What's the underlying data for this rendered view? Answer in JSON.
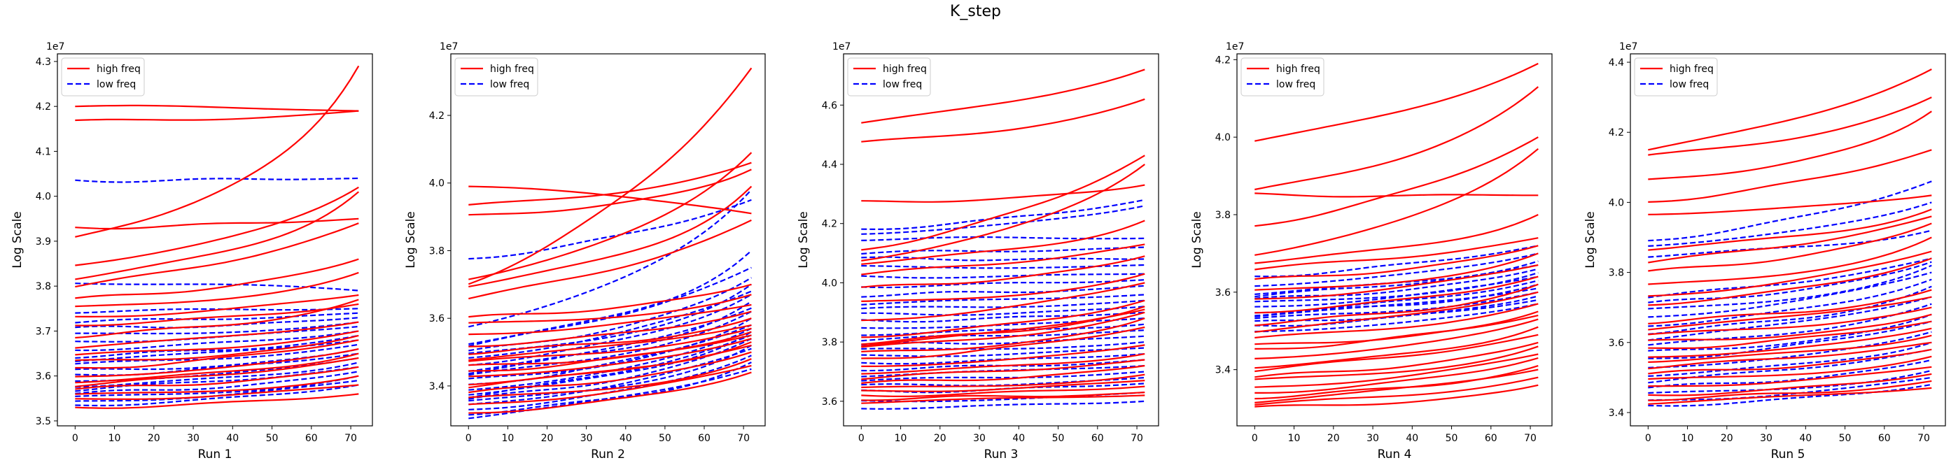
{
  "figure": {
    "title": "K_step"
  },
  "legend": {
    "high": "high freq",
    "low": "low freq"
  },
  "colors": {
    "high": "#ff0000",
    "low": "#0000ff"
  },
  "chart_data": [
    {
      "type": "line",
      "xlabel": "Run 1",
      "ylabel": "Log Scale",
      "offset_text": "1e7",
      "xticks": [
        0,
        10,
        20,
        30,
        40,
        50,
        60,
        70
      ],
      "xlim": [
        -4.5,
        75.5
      ],
      "yticks": [
        3.5,
        3.6,
        3.7,
        3.8,
        3.9,
        4.0,
        4.1,
        4.2,
        4.3
      ],
      "yticklabels": [
        "3.5",
        "3.6",
        "3.7",
        "3.8",
        "3.9",
        "4.0",
        "4.1",
        "4.2",
        "4.3"
      ],
      "ylim": [
        3.489,
        4.317
      ],
      "grid": false,
      "legend_loc": "upper left",
      "series_high": [
        {
          "s": 4.2,
          "e": 4.19
        },
        {
          "s": 4.165,
          "e": 4.19
        },
        {
          "s": 3.905,
          "e": 4.29
        },
        {
          "s": 3.93,
          "e": 3.95
        },
        {
          "s": 3.85,
          "e": 4.02
        },
        {
          "s": 3.82,
          "e": 4.01
        },
        {
          "s": 3.8,
          "e": 3.94
        },
        {
          "s": 3.77,
          "e": 3.86
        },
        {
          "s": 3.75,
          "e": 3.83
        },
        {
          "s": 3.73,
          "e": 3.78
        },
        {
          "s": 3.715,
          "e": 3.76
        },
        {
          "s": 3.69,
          "e": 3.77
        },
        {
          "s": 3.665,
          "e": 3.72
        },
        {
          "s": 3.645,
          "e": 3.7
        },
        {
          "s": 3.63,
          "e": 3.69
        },
        {
          "s": 3.615,
          "e": 3.68
        },
        {
          "s": 3.6,
          "e": 3.66
        },
        {
          "s": 3.59,
          "e": 3.65
        },
        {
          "s": 3.58,
          "e": 3.64
        },
        {
          "s": 3.57,
          "e": 3.62
        },
        {
          "s": 3.555,
          "e": 3.6
        },
        {
          "s": 3.545,
          "e": 3.58
        },
        {
          "s": 3.53,
          "e": 3.56
        }
      ],
      "series_low": [
        {
          "s": 4.035,
          "e": 4.04
        },
        {
          "s": 3.81,
          "e": 3.79
        },
        {
          "s": 3.745,
          "e": 3.75
        },
        {
          "s": 3.72,
          "e": 3.74
        },
        {
          "s": 3.705,
          "e": 3.73
        },
        {
          "s": 3.69,
          "e": 3.72
        },
        {
          "s": 3.675,
          "e": 3.71
        },
        {
          "s": 3.66,
          "e": 3.7
        },
        {
          "s": 3.645,
          "e": 3.69
        },
        {
          "s": 3.635,
          "e": 3.68
        },
        {
          "s": 3.625,
          "e": 3.67
        },
        {
          "s": 3.61,
          "e": 3.66
        },
        {
          "s": 3.6,
          "e": 3.65
        },
        {
          "s": 3.59,
          "e": 3.64
        },
        {
          "s": 3.58,
          "e": 3.63
        },
        {
          "s": 3.57,
          "e": 3.62
        },
        {
          "s": 3.56,
          "e": 3.61
        },
        {
          "s": 3.55,
          "e": 3.6
        },
        {
          "s": 3.54,
          "e": 3.59
        },
        {
          "s": 3.535,
          "e": 3.58
        }
      ]
    },
    {
      "type": "line",
      "xlabel": "Run 2",
      "ylabel": "Log Scale",
      "offset_text": "1e7",
      "xticks": [
        0,
        10,
        20,
        30,
        40,
        50,
        60,
        70
      ],
      "xlim": [
        -4.5,
        75.5
      ],
      "yticks": [
        3.4,
        3.6,
        3.8,
        4.0,
        4.2
      ],
      "yticklabels": [
        "3.4",
        "3.6",
        "3.8",
        "4.0",
        "4.2"
      ],
      "ylim": [
        3.282,
        4.382
      ],
      "grid": false,
      "legend_loc": "upper left",
      "series_high": [
        {
          "s": 3.99,
          "e": 3.91
        },
        {
          "s": 3.93,
          "e": 4.06
        },
        {
          "s": 3.9,
          "e": 4.04
        },
        {
          "s": 3.7,
          "e": 4.34
        },
        {
          "s": 3.72,
          "e": 4.09
        },
        {
          "s": 3.7,
          "e": 3.99
        },
        {
          "s": 3.66,
          "e": 3.89
        },
        {
          "s": 3.6,
          "e": 3.7
        },
        {
          "s": 3.58,
          "e": 3.67
        },
        {
          "s": 3.55,
          "e": 3.64
        },
        {
          "s": 3.52,
          "e": 3.62
        },
        {
          "s": 3.5,
          "e": 3.6
        },
        {
          "s": 3.48,
          "e": 3.58
        },
        {
          "s": 3.47,
          "e": 3.57
        },
        {
          "s": 3.455,
          "e": 3.56
        },
        {
          "s": 3.44,
          "e": 3.55
        },
        {
          "s": 3.43,
          "e": 3.54
        },
        {
          "s": 3.41,
          "e": 3.53
        },
        {
          "s": 3.4,
          "e": 3.52
        },
        {
          "s": 3.38,
          "e": 3.5
        },
        {
          "s": 3.36,
          "e": 3.48
        },
        {
          "s": 3.34,
          "e": 3.46
        },
        {
          "s": 3.32,
          "e": 3.44
        }
      ],
      "series_low": [
        {
          "s": 3.775,
          "e": 3.95
        },
        {
          "s": 3.58,
          "e": 3.98
        },
        {
          "s": 3.53,
          "e": 3.8
        },
        {
          "s": 3.52,
          "e": 3.75
        },
        {
          "s": 3.5,
          "e": 3.72
        },
        {
          "s": 3.49,
          "e": 3.7
        },
        {
          "s": 3.48,
          "e": 3.68
        },
        {
          "s": 3.465,
          "e": 3.67
        },
        {
          "s": 3.45,
          "e": 3.65
        },
        {
          "s": 3.44,
          "e": 3.63
        },
        {
          "s": 3.43,
          "e": 3.62
        },
        {
          "s": 3.415,
          "e": 3.6
        },
        {
          "s": 3.4,
          "e": 3.58
        },
        {
          "s": 3.39,
          "e": 3.57
        },
        {
          "s": 3.38,
          "e": 3.56
        },
        {
          "s": 3.37,
          "e": 3.55
        },
        {
          "s": 3.36,
          "e": 3.54
        },
        {
          "s": 3.35,
          "e": 3.52
        },
        {
          "s": 3.34,
          "e": 3.51
        },
        {
          "s": 3.33,
          "e": 3.49
        },
        {
          "s": 3.32,
          "e": 3.47
        },
        {
          "s": 3.31,
          "e": 3.45
        }
      ]
    },
    {
      "type": "line",
      "xlabel": "Run 3",
      "ylabel": "Log Scale",
      "offset_text": "1e7",
      "xticks": [
        0,
        10,
        20,
        30,
        40,
        50,
        60,
        70
      ],
      "xlim": [
        -4.5,
        75.5
      ],
      "yticks": [
        3.6,
        3.8,
        4.0,
        4.2,
        4.4,
        4.6
      ],
      "yticklabels": [
        "3.6",
        "3.8",
        "4.0",
        "4.2",
        "4.4",
        "4.6"
      ],
      "ylim": [
        3.517,
        4.773
      ],
      "grid": false,
      "legend_loc": "upper left",
      "series_high": [
        {
          "s": 4.54,
          "e": 4.72
        },
        {
          "s": 4.47,
          "e": 4.62
        },
        {
          "s": 4.27,
          "e": 4.33
        },
        {
          "s": 4.11,
          "e": 4.43
        },
        {
          "s": 4.08,
          "e": 4.4
        },
        {
          "s": 4.07,
          "e": 4.21
        },
        {
          "s": 4.03,
          "e": 4.13
        },
        {
          "s": 3.98,
          "e": 4.09
        },
        {
          "s": 3.93,
          "e": 4.03
        },
        {
          "s": 3.87,
          "e": 4.0
        },
        {
          "s": 3.82,
          "e": 3.94
        },
        {
          "s": 3.8,
          "e": 3.92
        },
        {
          "s": 3.79,
          "e": 3.91
        },
        {
          "s": 3.78,
          "e": 3.9
        },
        {
          "s": 3.76,
          "e": 3.88
        },
        {
          "s": 3.74,
          "e": 3.85
        },
        {
          "s": 3.72,
          "e": 3.79
        },
        {
          "s": 3.7,
          "e": 3.76
        },
        {
          "s": 3.68,
          "e": 3.74
        },
        {
          "s": 3.66,
          "e": 3.72
        },
        {
          "s": 3.64,
          "e": 3.69
        },
        {
          "s": 3.63,
          "e": 3.67
        },
        {
          "s": 3.62,
          "e": 3.65
        },
        {
          "s": 3.61,
          "e": 3.63
        },
        {
          "s": 3.6,
          "e": 3.62
        }
      ],
      "series_low": [
        {
          "s": 4.18,
          "e": 4.28
        },
        {
          "s": 4.17,
          "e": 4.26
        },
        {
          "s": 4.15,
          "e": 4.15
        },
        {
          "s": 4.1,
          "e": 4.12
        },
        {
          "s": 4.08,
          "e": 4.08
        },
        {
          "s": 4.05,
          "e": 4.06
        },
        {
          "s": 4.02,
          "e": 4.03
        },
        {
          "s": 3.99,
          "e": 4.01
        },
        {
          "s": 3.96,
          "e": 3.99
        },
        {
          "s": 3.93,
          "e": 3.96
        },
        {
          "s": 3.91,
          "e": 3.94
        },
        {
          "s": 3.89,
          "e": 3.92
        },
        {
          "s": 3.87,
          "e": 3.9
        },
        {
          "s": 3.85,
          "e": 3.88
        },
        {
          "s": 3.83,
          "e": 3.86
        },
        {
          "s": 3.81,
          "e": 3.84
        },
        {
          "s": 3.79,
          "e": 3.82
        },
        {
          "s": 3.77,
          "e": 3.8
        },
        {
          "s": 3.75,
          "e": 3.78
        },
        {
          "s": 3.73,
          "e": 3.76
        },
        {
          "s": 3.71,
          "e": 3.74
        },
        {
          "s": 3.69,
          "e": 3.72
        },
        {
          "s": 3.67,
          "e": 3.7
        },
        {
          "s": 3.65,
          "e": 3.68
        },
        {
          "s": 3.63,
          "e": 3.66
        },
        {
          "s": 3.6,
          "e": 3.63
        },
        {
          "s": 3.58,
          "e": 3.6
        }
      ]
    },
    {
      "type": "line",
      "xlabel": "Run 4",
      "ylabel": "Log Scale",
      "offset_text": "1e7",
      "xticks": [
        0,
        10,
        20,
        30,
        40,
        50,
        60,
        70
      ],
      "xlim": [
        -4.5,
        75.5
      ],
      "yticks": [
        3.4,
        3.6,
        3.8,
        4.0,
        4.2
      ],
      "yticklabels": [
        "3.4",
        "3.6",
        "3.8",
        "4.0",
        "4.2"
      ],
      "ylim": [
        3.255,
        4.215
      ],
      "grid": false,
      "legend_loc": "upper left",
      "series_high": [
        {
          "s": 3.99,
          "e": 4.19
        },
        {
          "s": 3.86,
          "e": 4.13
        },
        {
          "s": 3.85,
          "e": 3.85
        },
        {
          "s": 3.77,
          "e": 4.0
        },
        {
          "s": 3.7,
          "e": 3.97
        },
        {
          "s": 3.68,
          "e": 3.8
        },
        {
          "s": 3.66,
          "e": 3.74
        },
        {
          "s": 3.63,
          "e": 3.72
        },
        {
          "s": 3.6,
          "e": 3.7
        },
        {
          "s": 3.58,
          "e": 3.67
        },
        {
          "s": 3.55,
          "e": 3.64
        },
        {
          "s": 3.52,
          "e": 3.62
        },
        {
          "s": 3.5,
          "e": 3.6
        },
        {
          "s": 3.48,
          "e": 3.57
        },
        {
          "s": 3.46,
          "e": 3.55
        },
        {
          "s": 3.45,
          "e": 3.54
        },
        {
          "s": 3.43,
          "e": 3.53
        },
        {
          "s": 3.41,
          "e": 3.51
        },
        {
          "s": 3.4,
          "e": 3.49
        },
        {
          "s": 3.38,
          "e": 3.47
        },
        {
          "s": 3.37,
          "e": 3.46
        },
        {
          "s": 3.35,
          "e": 3.44
        },
        {
          "s": 3.34,
          "e": 3.43
        },
        {
          "s": 3.33,
          "e": 3.41
        },
        {
          "s": 3.32,
          "e": 3.4
        },
        {
          "s": 3.31,
          "e": 3.38
        },
        {
          "s": 3.3,
          "e": 3.36
        }
      ],
      "series_low": [
        {
          "s": 3.64,
          "e": 3.72
        },
        {
          "s": 3.62,
          "e": 3.7
        },
        {
          "s": 3.6,
          "e": 3.68
        },
        {
          "s": 3.59,
          "e": 3.67
        },
        {
          "s": 3.58,
          "e": 3.66
        },
        {
          "s": 3.57,
          "e": 3.65
        },
        {
          "s": 3.56,
          "e": 3.64
        },
        {
          "s": 3.55,
          "e": 3.63
        },
        {
          "s": 3.545,
          "e": 3.62
        },
        {
          "s": 3.54,
          "e": 3.61
        },
        {
          "s": 3.53,
          "e": 3.6
        },
        {
          "s": 3.52,
          "e": 3.59
        },
        {
          "s": 3.51,
          "e": 3.58
        },
        {
          "s": 3.5,
          "e": 3.57
        }
      ]
    },
    {
      "type": "line",
      "xlabel": "Run 5",
      "ylabel": "Log Scale",
      "offset_text": "1e7",
      "xticks": [
        0,
        10,
        20,
        30,
        40,
        50,
        60,
        70
      ],
      "xlim": [
        -4.5,
        75.5
      ],
      "yticks": [
        3.4,
        3.6,
        3.8,
        4.0,
        4.2,
        4.4
      ],
      "yticklabels": [
        "3.4",
        "3.6",
        "3.8",
        "4.0",
        "4.2",
        "4.4"
      ],
      "ylim": [
        3.362,
        4.424
      ],
      "grid": false,
      "legend_loc": "upper left",
      "series_high": [
        {
          "s": 4.15,
          "e": 4.38
        },
        {
          "s": 4.13,
          "e": 4.3
        },
        {
          "s": 4.06,
          "e": 4.26
        },
        {
          "s": 4.0,
          "e": 4.15
        },
        {
          "s": 3.97,
          "e": 4.02
        },
        {
          "s": 3.87,
          "e": 3.98
        },
        {
          "s": 3.83,
          "e": 3.96
        },
        {
          "s": 3.8,
          "e": 3.94
        },
        {
          "s": 3.76,
          "e": 3.9
        },
        {
          "s": 3.73,
          "e": 3.86
        },
        {
          "s": 3.71,
          "e": 3.84
        },
        {
          "s": 3.66,
          "e": 3.75
        },
        {
          "s": 3.64,
          "e": 3.73
        },
        {
          "s": 3.62,
          "e": 3.7
        },
        {
          "s": 3.6,
          "e": 3.68
        },
        {
          "s": 3.58,
          "e": 3.66
        },
        {
          "s": 3.56,
          "e": 3.64
        },
        {
          "s": 3.55,
          "e": 3.62
        },
        {
          "s": 3.53,
          "e": 3.6
        },
        {
          "s": 3.51,
          "e": 3.58
        },
        {
          "s": 3.49,
          "e": 3.56
        },
        {
          "s": 3.47,
          "e": 3.53
        },
        {
          "s": 3.45,
          "e": 3.51
        },
        {
          "s": 3.44,
          "e": 3.49
        },
        {
          "s": 3.43,
          "e": 3.47
        }
      ],
      "series_low": [
        {
          "s": 3.89,
          "e": 4.06
        },
        {
          "s": 3.88,
          "e": 4.0
        },
        {
          "s": 3.85,
          "e": 3.92
        },
        {
          "s": 3.73,
          "e": 3.84
        },
        {
          "s": 3.71,
          "e": 3.83
        },
        {
          "s": 3.69,
          "e": 3.82
        },
        {
          "s": 3.67,
          "e": 3.8
        },
        {
          "s": 3.65,
          "e": 3.78
        },
        {
          "s": 3.63,
          "e": 3.76
        },
        {
          "s": 3.61,
          "e": 3.73
        },
        {
          "s": 3.59,
          "e": 3.71
        },
        {
          "s": 3.57,
          "e": 3.68
        },
        {
          "s": 3.55,
          "e": 3.66
        },
        {
          "s": 3.53,
          "e": 3.63
        },
        {
          "s": 3.51,
          "e": 3.6
        },
        {
          "s": 3.49,
          "e": 3.58
        },
        {
          "s": 3.47,
          "e": 3.55
        },
        {
          "s": 3.45,
          "e": 3.52
        },
        {
          "s": 3.43,
          "e": 3.5
        },
        {
          "s": 3.42,
          "e": 3.48
        }
      ]
    }
  ]
}
